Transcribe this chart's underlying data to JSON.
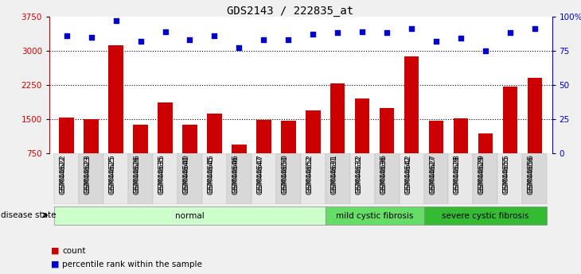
{
  "title": "GDS2143 / 222835_at",
  "samples": [
    "GSM44622",
    "GSM44623",
    "GSM44625",
    "GSM44626",
    "GSM44635",
    "GSM44640",
    "GSM44645",
    "GSM44646",
    "GSM44647",
    "GSM44650",
    "GSM44652",
    "GSM44631",
    "GSM44632",
    "GSM44636",
    "GSM44642",
    "GSM44627",
    "GSM44628",
    "GSM44629",
    "GSM44655",
    "GSM44656"
  ],
  "counts": [
    1530,
    1500,
    3120,
    1380,
    1870,
    1380,
    1620,
    950,
    1480,
    1460,
    1690,
    2280,
    1950,
    1750,
    2870,
    1460,
    1520,
    1180,
    2210,
    2400
  ],
  "percentiles": [
    86,
    85,
    97,
    82,
    89,
    83,
    86,
    77,
    83,
    83,
    87,
    88,
    89,
    88,
    91,
    82,
    84,
    75,
    88,
    91
  ],
  "groups": [
    {
      "label": "normal",
      "start": 0,
      "end": 11,
      "color": "#ccffcc"
    },
    {
      "label": "mild cystic fibrosis",
      "start": 11,
      "end": 15,
      "color": "#66dd66"
    },
    {
      "label": "severe cystic fibrosis",
      "start": 15,
      "end": 20,
      "color": "#33bb33"
    }
  ],
  "bar_color": "#cc0000",
  "dot_color": "#0000cc",
  "ylim_left": [
    750,
    3750
  ],
  "ylim_right": [
    0,
    100
  ],
  "yticks_left": [
    750,
    1500,
    2250,
    3000,
    3750
  ],
  "yticks_right": [
    0,
    25,
    50,
    75,
    100
  ],
  "grid_values": [
    1500,
    2250,
    3000
  ],
  "bg_color": "#f0f0f0"
}
